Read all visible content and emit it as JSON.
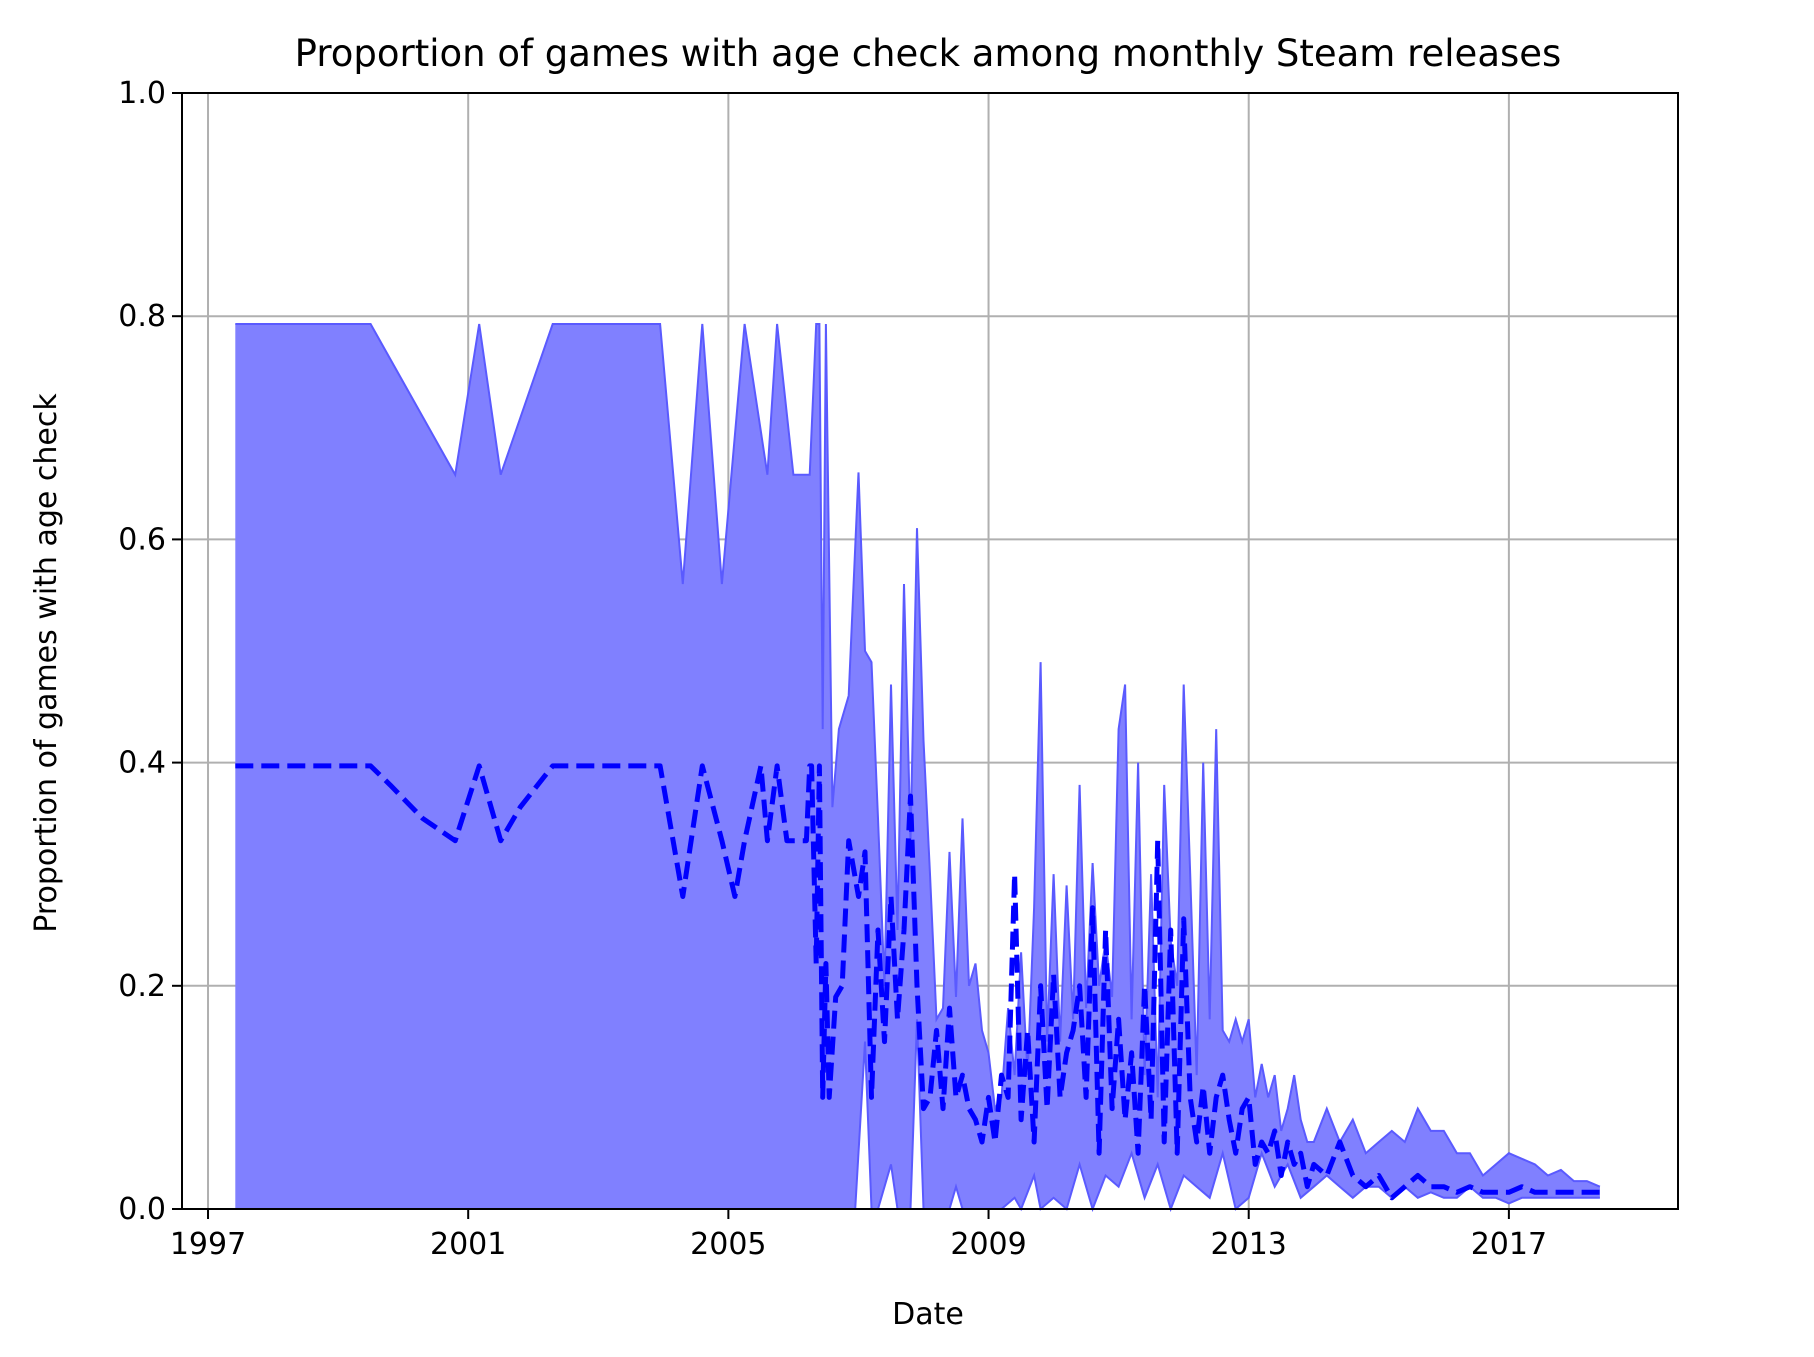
{
  "chart_data": {
    "type": "area",
    "title": "Proportion of games with age check among monthly Steam releases",
    "xlabel": "Date",
    "ylabel": "Proportion of games with age check",
    "xlim": [
      1996.6,
      2019.6
    ],
    "ylim": [
      0.0,
      1.0
    ],
    "x_ticks": [
      1997,
      2001,
      2005,
      2009,
      2013,
      2017
    ],
    "x_tick_labels": [
      "1997",
      "2001",
      "2005",
      "2009",
      "2013",
      "2017"
    ],
    "y_ticks": [
      0.0,
      0.2,
      0.4,
      0.6,
      0.8,
      1.0
    ],
    "y_tick_labels": [
      "0.0",
      "0.2",
      "0.4",
      "0.6",
      "0.8",
      "1.0"
    ],
    "grid": true,
    "colors": {
      "fill": "#8080ff",
      "line": "#0000ff",
      "band_edge": "#5a5aff",
      "grid": "#b0b0b0"
    },
    "series": [
      {
        "kind": "mean",
        "style": "dashed",
        "x": [
          1997.42,
          1999.5,
          1999.8,
          2000.3,
          2000.8,
          2001.17,
          2001.5,
          2001.8,
          2002.3,
          2002.8,
          2003.3,
          2003.6,
          2003.95,
          2004.3,
          2004.6,
          2004.9,
          2005.1,
          2005.25,
          2005.5,
          2005.6,
          2005.75,
          2005.9,
          2006.1,
          2006.2,
          2006.25,
          2006.28,
          2006.35,
          2006.4,
          2006.45,
          2006.5,
          2006.55,
          2006.65,
          2006.75,
          2006.85,
          2007.0,
          2007.1,
          2007.2,
          2007.3,
          2007.4,
          2007.5,
          2007.6,
          2007.7,
          2007.8,
          2007.9,
          2008.0,
          2008.1,
          2008.2,
          2008.3,
          2008.4,
          2008.5,
          2008.6,
          2008.7,
          2008.8,
          2008.9,
          2009.0,
          2009.1,
          2009.2,
          2009.3,
          2009.4,
          2009.5,
          2009.6,
          2009.7,
          2009.8,
          2009.9,
          2010.0,
          2010.1,
          2010.2,
          2010.3,
          2010.4,
          2010.5,
          2010.6,
          2010.7,
          2010.8,
          2010.9,
          2011.0,
          2011.1,
          2011.2,
          2011.3,
          2011.4,
          2011.5,
          2011.6,
          2011.7,
          2011.8,
          2011.9,
          2012.0,
          2012.1,
          2012.2,
          2012.3,
          2012.4,
          2012.5,
          2012.6,
          2012.7,
          2012.8,
          2012.9,
          2013.0,
          2013.1,
          2013.2,
          2013.3,
          2013.4,
          2013.5,
          2013.6,
          2013.7,
          2013.8,
          2013.9,
          2014.0,
          2014.2,
          2014.4,
          2014.6,
          2014.8,
          2015.0,
          2015.2,
          2015.4,
          2015.6,
          2015.8,
          2016.0,
          2016.2,
          2016.4,
          2016.6,
          2016.8,
          2017.0,
          2017.2,
          2017.4,
          2017.6,
          2017.8,
          2018.0,
          2018.2,
          2018.4
        ],
        "y": [
          0.397,
          0.397,
          0.38,
          0.35,
          0.33,
          0.397,
          0.33,
          0.36,
          0.397,
          0.397,
          0.397,
          0.397,
          0.397,
          0.28,
          0.397,
          0.33,
          0.28,
          0.33,
          0.397,
          0.33,
          0.397,
          0.33,
          0.33,
          0.33,
          0.397,
          0.397,
          0.22,
          0.397,
          0.1,
          0.22,
          0.1,
          0.19,
          0.2,
          0.33,
          0.28,
          0.32,
          0.1,
          0.25,
          0.15,
          0.28,
          0.17,
          0.25,
          0.37,
          0.2,
          0.09,
          0.1,
          0.16,
          0.09,
          0.18,
          0.1,
          0.12,
          0.09,
          0.08,
          0.06,
          0.1,
          0.06,
          0.12,
          0.1,
          0.3,
          0.08,
          0.16,
          0.06,
          0.2,
          0.09,
          0.21,
          0.1,
          0.14,
          0.16,
          0.2,
          0.1,
          0.27,
          0.05,
          0.25,
          0.09,
          0.17,
          0.08,
          0.14,
          0.05,
          0.2,
          0.08,
          0.33,
          0.06,
          0.25,
          0.05,
          0.26,
          0.1,
          0.06,
          0.11,
          0.05,
          0.1,
          0.12,
          0.08,
          0.05,
          0.09,
          0.1,
          0.04,
          0.06,
          0.05,
          0.07,
          0.03,
          0.06,
          0.04,
          0.05,
          0.02,
          0.04,
          0.03,
          0.06,
          0.03,
          0.02,
          0.03,
          0.01,
          0.02,
          0.03,
          0.02,
          0.02,
          0.015,
          0.02,
          0.015,
          0.015,
          0.015,
          0.02,
          0.015,
          0.015,
          0.015,
          0.015,
          0.015,
          0.015
        ]
      },
      {
        "kind": "upper",
        "x": [
          1997.42,
          1999.5,
          2000.8,
          2001.17,
          2001.5,
          2002.3,
          2003.95,
          2004.3,
          2004.6,
          2004.9,
          2005.25,
          2005.6,
          2005.75,
          2006.0,
          2006.25,
          2006.35,
          2006.4,
          2006.45,
          2006.5,
          2006.6,
          2006.7,
          2006.85,
          2007.0,
          2007.1,
          2007.2,
          2007.3,
          2007.4,
          2007.5,
          2007.6,
          2007.7,
          2007.8,
          2007.9,
          2008.0,
          2008.1,
          2008.2,
          2008.3,
          2008.4,
          2008.5,
          2008.6,
          2008.7,
          2008.8,
          2008.9,
          2009.0,
          2009.1,
          2009.2,
          2009.3,
          2009.4,
          2009.5,
          2009.6,
          2009.7,
          2009.8,
          2009.9,
          2010.0,
          2010.1,
          2010.2,
          2010.3,
          2010.4,
          2010.5,
          2010.6,
          2010.7,
          2010.8,
          2010.9,
          2011.0,
          2011.1,
          2011.2,
          2011.3,
          2011.4,
          2011.5,
          2011.6,
          2011.7,
          2011.8,
          2011.9,
          2012.0,
          2012.1,
          2012.2,
          2012.3,
          2012.4,
          2012.5,
          2012.6,
          2012.7,
          2012.8,
          2012.9,
          2013.0,
          2013.1,
          2013.2,
          2013.3,
          2013.4,
          2013.5,
          2013.6,
          2013.7,
          2013.8,
          2013.9,
          2014.0,
          2014.2,
          2014.4,
          2014.6,
          2014.8,
          2015.0,
          2015.2,
          2015.4,
          2015.6,
          2015.8,
          2016.0,
          2016.2,
          2016.4,
          2016.6,
          2016.8,
          2017.0,
          2017.2,
          2017.4,
          2017.6,
          2017.8,
          2018.0,
          2018.2,
          2018.4
        ],
        "y": [
          0.793,
          0.793,
          0.658,
          0.793,
          0.658,
          0.793,
          0.793,
          0.56,
          0.793,
          0.56,
          0.793,
          0.658,
          0.793,
          0.658,
          0.658,
          0.793,
          0.793,
          0.43,
          0.793,
          0.36,
          0.43,
          0.46,
          0.66,
          0.5,
          0.49,
          0.35,
          0.2,
          0.47,
          0.25,
          0.56,
          0.33,
          0.61,
          0.42,
          0.3,
          0.17,
          0.18,
          0.32,
          0.19,
          0.35,
          0.2,
          0.22,
          0.16,
          0.14,
          0.09,
          0.1,
          0.18,
          0.12,
          0.23,
          0.12,
          0.27,
          0.49,
          0.15,
          0.3,
          0.15,
          0.29,
          0.17,
          0.38,
          0.18,
          0.31,
          0.2,
          0.24,
          0.19,
          0.43,
          0.47,
          0.17,
          0.4,
          0.12,
          0.3,
          0.1,
          0.38,
          0.24,
          0.2,
          0.47,
          0.3,
          0.12,
          0.4,
          0.17,
          0.43,
          0.16,
          0.15,
          0.17,
          0.15,
          0.17,
          0.1,
          0.13,
          0.1,
          0.12,
          0.07,
          0.09,
          0.12,
          0.08,
          0.06,
          0.06,
          0.09,
          0.06,
          0.08,
          0.05,
          0.06,
          0.07,
          0.06,
          0.09,
          0.07,
          0.07,
          0.05,
          0.05,
          0.03,
          0.04,
          0.05,
          0.045,
          0.04,
          0.03,
          0.035,
          0.025,
          0.025,
          0.02
        ]
      },
      {
        "kind": "lower",
        "x": [
          1997.42,
          2006.95,
          2007.1,
          2007.2,
          2007.3,
          2007.5,
          2007.6,
          2007.8,
          2007.9,
          2008.0,
          2008.2,
          2008.4,
          2008.5,
          2008.6,
          2008.8,
          2009.0,
          2009.2,
          2009.4,
          2009.5,
          2009.7,
          2009.8,
          2010.0,
          2010.2,
          2010.4,
          2010.6,
          2010.8,
          2011.0,
          2011.2,
          2011.4,
          2011.6,
          2011.8,
          2012.0,
          2012.2,
          2012.4,
          2012.6,
          2012.8,
          2013.0,
          2013.2,
          2013.4,
          2013.6,
          2013.8,
          2014.0,
          2014.2,
          2014.4,
          2014.6,
          2014.8,
          2015.0,
          2015.2,
          2015.4,
          2015.6,
          2015.8,
          2016.0,
          2016.2,
          2016.4,
          2016.6,
          2016.8,
          2017.0,
          2017.2,
          2017.4,
          2017.6,
          2017.8,
          2018.0,
          2018.2,
          2018.4
        ],
        "y": [
          0.0,
          0.0,
          0.15,
          0.0,
          0.0,
          0.04,
          0.0,
          0.0,
          0.17,
          0.0,
          0.0,
          0.0,
          0.02,
          0.0,
          0.0,
          0.0,
          0.0,
          0.01,
          0.0,
          0.03,
          0.0,
          0.01,
          0.0,
          0.04,
          0.0,
          0.03,
          0.02,
          0.05,
          0.01,
          0.04,
          0.0,
          0.03,
          0.02,
          0.01,
          0.05,
          0.0,
          0.01,
          0.05,
          0.02,
          0.04,
          0.01,
          0.02,
          0.03,
          0.02,
          0.01,
          0.02,
          0.02,
          0.01,
          0.02,
          0.01,
          0.015,
          0.01,
          0.01,
          0.02,
          0.01,
          0.01,
          0.005,
          0.01,
          0.01,
          0.01,
          0.01,
          0.01,
          0.01,
          0.01
        ]
      }
    ]
  }
}
